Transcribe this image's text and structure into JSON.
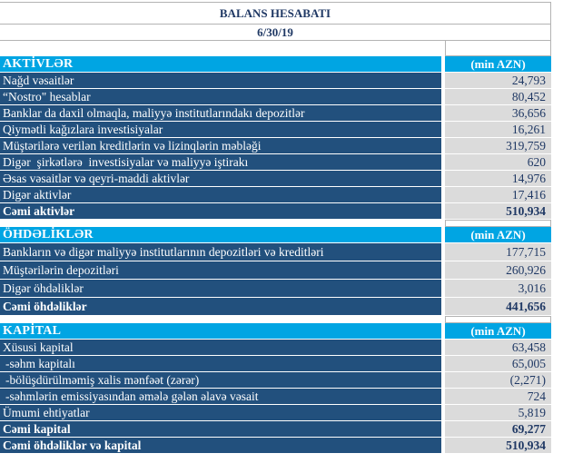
{
  "title": "BALANS HESABATI",
  "date": "6/30/19",
  "colors": {
    "section_header_bg": "#00A5E3",
    "row_label_bg": "#22507D",
    "value_cell_bg": "#DBDBDB",
    "value_text": "#1F3864",
    "grid_border": "#B3B3B3"
  },
  "sections": [
    {
      "name": "AKTİVLƏR",
      "unit": "(min AZN)",
      "rows": [
        {
          "label": "Nağd vəsaitlər",
          "value": "24,793"
        },
        {
          "label": "“Nostro\" hesablar",
          "value": "80,452"
        },
        {
          "label": "Banklar da daxil olmaqla, maliyyə institutlarındakı depozitlər",
          "value": "36,656"
        },
        {
          "label": "Qiymətli kağızlara investisiyalar",
          "value": "16,261"
        },
        {
          "label": "Müştərilərə verilən kreditlərin və lizinqlərin məbləği",
          "value": "319,759"
        },
        {
          "label": "Digər  şirkətlərə  investisiyalar və maliyyə iştirakı",
          "value": "620"
        },
        {
          "label": "Əsas vəsaitlər və qeyri-maddi aktivlər",
          "value": "14,976"
        },
        {
          "label": "Digər aktivlər",
          "value": "17,416"
        },
        {
          "label": "Cəmi aktivlər",
          "value": "510,934",
          "bold": true
        }
      ]
    },
    {
      "name": "ÖHDƏLİKLƏR",
      "unit": "(min AZN)",
      "rows": [
        {
          "label": "Bankların və digər maliyyə institutlarının depozitləri və kreditləri",
          "value": "177,715"
        },
        {
          "label": "Müştərilərin depozitləri",
          "value": "260,926"
        },
        {
          "label": "Digər öhdəliklər",
          "value": "3,016"
        },
        {
          "label": "Cəmi öhdəliklər",
          "value": "441,656",
          "bold": true
        }
      ]
    },
    {
      "name": "KAPİTAL",
      "unit": "(min AZN)",
      "rows": [
        {
          "label": "Xüsusi kapital",
          "value": "63,458"
        },
        {
          "label": "-səhm kapitalı",
          "value": "65,005",
          "sub": true
        },
        {
          "label": "-bölüşdürülməmiş xalis mənfəət (zərər)",
          "value": "(2,271)",
          "sub": true
        },
        {
          "label": "-səhmlərin emissiyasından əmələ gələn əlavə vəsait",
          "value": "724",
          "sub": true
        },
        {
          "label": "Ümumi ehtiyatlar",
          "value": "5,819"
        },
        {
          "label": "Cəmi kapital",
          "value": "69,277",
          "bold": true
        },
        {
          "label": "Cəmi öhdəliklər və kapital",
          "value": "510,934",
          "bold": true
        }
      ]
    }
  ]
}
